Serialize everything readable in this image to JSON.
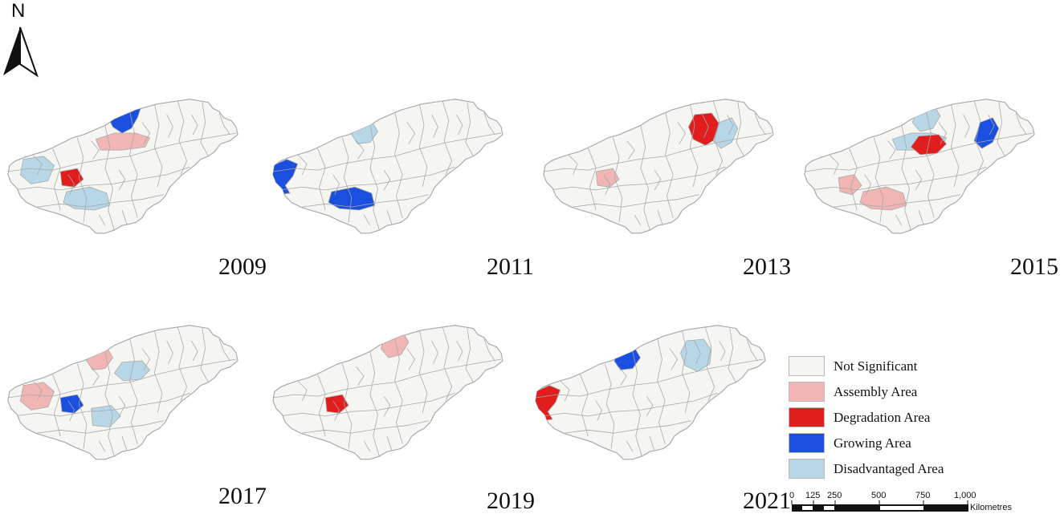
{
  "north_arrow": {
    "label": "N"
  },
  "panels": [
    {
      "year": "2009",
      "highlights": [
        {
          "category": "growing",
          "region": "north-upper"
        },
        {
          "category": "assembly",
          "region": "center-north"
        },
        {
          "category": "disadvantaged",
          "region": "west"
        },
        {
          "category": "degradation",
          "region": "west-center"
        },
        {
          "category": "disadvantaged",
          "region": "south"
        }
      ]
    },
    {
      "year": "2011",
      "highlights": [
        {
          "category": "disadvantaged",
          "region": "north-center"
        },
        {
          "category": "growing",
          "region": "west-edge"
        },
        {
          "category": "growing",
          "region": "center-west"
        },
        {
          "category": "growing",
          "region": "south"
        }
      ]
    },
    {
      "year": "2013",
      "highlights": [
        {
          "category": "assembly",
          "region": "west-center"
        },
        {
          "category": "degradation",
          "region": "north-east"
        },
        {
          "category": "disadvantaged",
          "region": "east"
        }
      ]
    },
    {
      "year": "2015",
      "highlights": [
        {
          "category": "disadvantaged",
          "region": "north"
        },
        {
          "category": "disadvantaged",
          "region": "center-north"
        },
        {
          "category": "degradation",
          "region": "center"
        },
        {
          "category": "growing",
          "region": "east"
        },
        {
          "category": "assembly",
          "region": "south-west"
        },
        {
          "category": "assembly",
          "region": "south"
        }
      ]
    },
    {
      "year": "2017",
      "highlights": [
        {
          "category": "assembly",
          "region": "north-center"
        },
        {
          "category": "growing",
          "region": "west-center"
        },
        {
          "category": "assembly",
          "region": "west"
        },
        {
          "category": "disadvantaged",
          "region": "center"
        },
        {
          "category": "disadvantaged",
          "region": "south-center"
        }
      ]
    },
    {
      "year": "2019",
      "highlights": [
        {
          "category": "assembly",
          "region": "north"
        },
        {
          "category": "degradation",
          "region": "west-center"
        }
      ]
    },
    {
      "year": "2021",
      "highlights": [
        {
          "category": "growing",
          "region": "north-center"
        },
        {
          "category": "disadvantaged",
          "region": "north-east"
        },
        {
          "category": "degradation",
          "region": "west-edge"
        }
      ]
    }
  ],
  "legend": {
    "items": [
      {
        "key": "not_significant",
        "label": "Not Significant",
        "color": "#f5f5f1"
      },
      {
        "key": "assembly",
        "label": "Assembly Area",
        "color": "#f1b5b3"
      },
      {
        "key": "degradation",
        "label": "Degradation Area",
        "color": "#e01e1e"
      },
      {
        "key": "growing",
        "label": "Growing Area",
        "color": "#1a4fe0"
      },
      {
        "key": "disadvantaged",
        "label": "Disadvantaged Area",
        "color": "#b7d6e6"
      }
    ]
  },
  "scale_bar": {
    "ticks": [
      "0",
      "125",
      "250",
      "500",
      "750",
      "1,000"
    ],
    "unit": "Kilometres"
  },
  "colors": {
    "boundary": "#a8a8a8",
    "base": "#f5f5f1"
  }
}
